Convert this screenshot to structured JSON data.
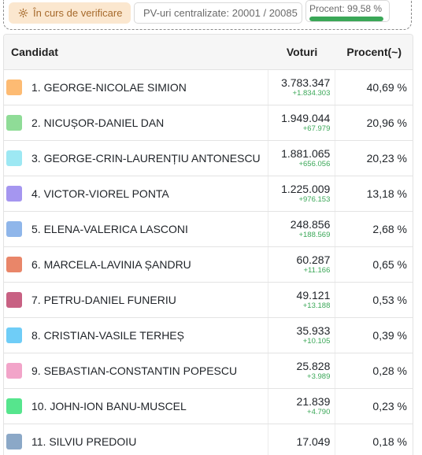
{
  "status": {
    "verification_label": "În curs de verificare",
    "pv_label": "PV-uri centralizate: 20001 / 20085",
    "percent_label": "Procent: 99,58 %",
    "percent_value": 0.9958,
    "progress_color": "#3aa757"
  },
  "table": {
    "headers": {
      "candidate": "Candidat",
      "votes": "Voturi",
      "percent": "Procent(~)"
    },
    "rows": [
      {
        "name": "1. GEORGE-NICOLAE SIMION",
        "votes": "3.783.347",
        "delta": "+1.834.303",
        "percent": "40,69 %",
        "color": "#fdbb73"
      },
      {
        "name": "2. NICUȘOR-DANIEL DAN",
        "votes": "1.949.044",
        "delta": "+67.979",
        "percent": "20,96 %",
        "color": "#8fdc97"
      },
      {
        "name": "3. GEORGE-CRIN-LAURENȚIU ANTONESCU",
        "votes": "1.881.065",
        "delta": "+656.056",
        "percent": "20,23 %",
        "color": "#9de8f3"
      },
      {
        "name": "4. VICTOR-VIOREL PONTA",
        "votes": "1.225.009",
        "delta": "+976.153",
        "percent": "13,18 %",
        "color": "#a596f0"
      },
      {
        "name": "5. ELENA-VALERICA LASCONI",
        "votes": "248.856",
        "delta": "+188.569",
        "percent": "2,68 %",
        "color": "#8fb6ea"
      },
      {
        "name": "6. MARCELA-LAVINIA ȘANDRU",
        "votes": "60.287",
        "delta": "+11.166",
        "percent": "0,65 %",
        "color": "#e98669"
      },
      {
        "name": "7. PETRU-DANIEL FUNERIU",
        "votes": "49.121",
        "delta": "+13.188",
        "percent": "0,53 %",
        "color": "#c86183"
      },
      {
        "name": "8. CRISTIAN-VASILE TERHEȘ",
        "votes": "35.933",
        "delta": "+10.105",
        "percent": "0,39 %",
        "color": "#6fcdf7"
      },
      {
        "name": "9. SEBASTIAN-CONSTANTIN POPESCU",
        "votes": "25.828",
        "delta": "+3.989",
        "percent": "0,28 %",
        "color": "#f2a4c9"
      },
      {
        "name": "10. JOHN-ION BANU-MUSCEL",
        "votes": "21.839",
        "delta": "+4.790",
        "percent": "0,23 %",
        "color": "#56e58d"
      },
      {
        "name": "11. SILVIU PREDOIU",
        "votes": "17.049",
        "delta": "",
        "percent": "0,18 %",
        "color": "#8ba8c7"
      }
    ]
  }
}
